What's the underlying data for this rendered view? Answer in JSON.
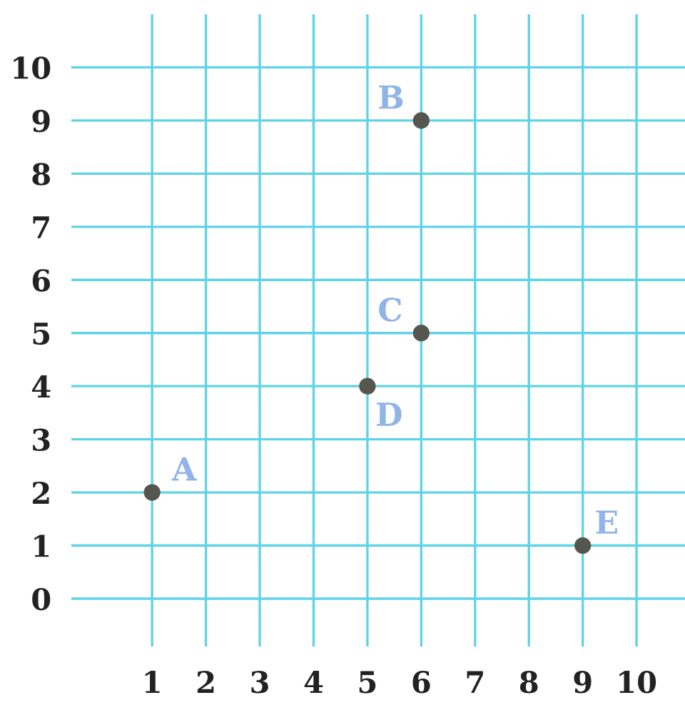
{
  "chart_data": {
    "type": "scatter",
    "x": [
      1,
      6,
      6,
      5,
      9
    ],
    "series": [
      {
        "color": "#55574f",
        "values": [
          2,
          9,
          5,
          4,
          1
        ]
      }
    ],
    "xlim": [
      -0.5,
      10.9
    ],
    "ylim": [
      -0.9,
      11
    ],
    "xticks": [
      1,
      2,
      3,
      4,
      5,
      6,
      7,
      8,
      9,
      10
    ],
    "yticks": [
      0,
      1,
      2,
      3,
      4,
      5,
      6,
      7,
      8,
      9,
      10
    ],
    "grid": true,
    "marker": "circle",
    "annotations": [
      {
        "text": "A",
        "x": 1,
        "y": 2
      },
      {
        "text": "B",
        "x": 6,
        "y": 9
      },
      {
        "text": "C",
        "x": 6,
        "y": 5
      },
      {
        "text": "D",
        "x": 5,
        "y": 4
      },
      {
        "text": "E",
        "x": 9,
        "y": 1
      }
    ]
  }
}
